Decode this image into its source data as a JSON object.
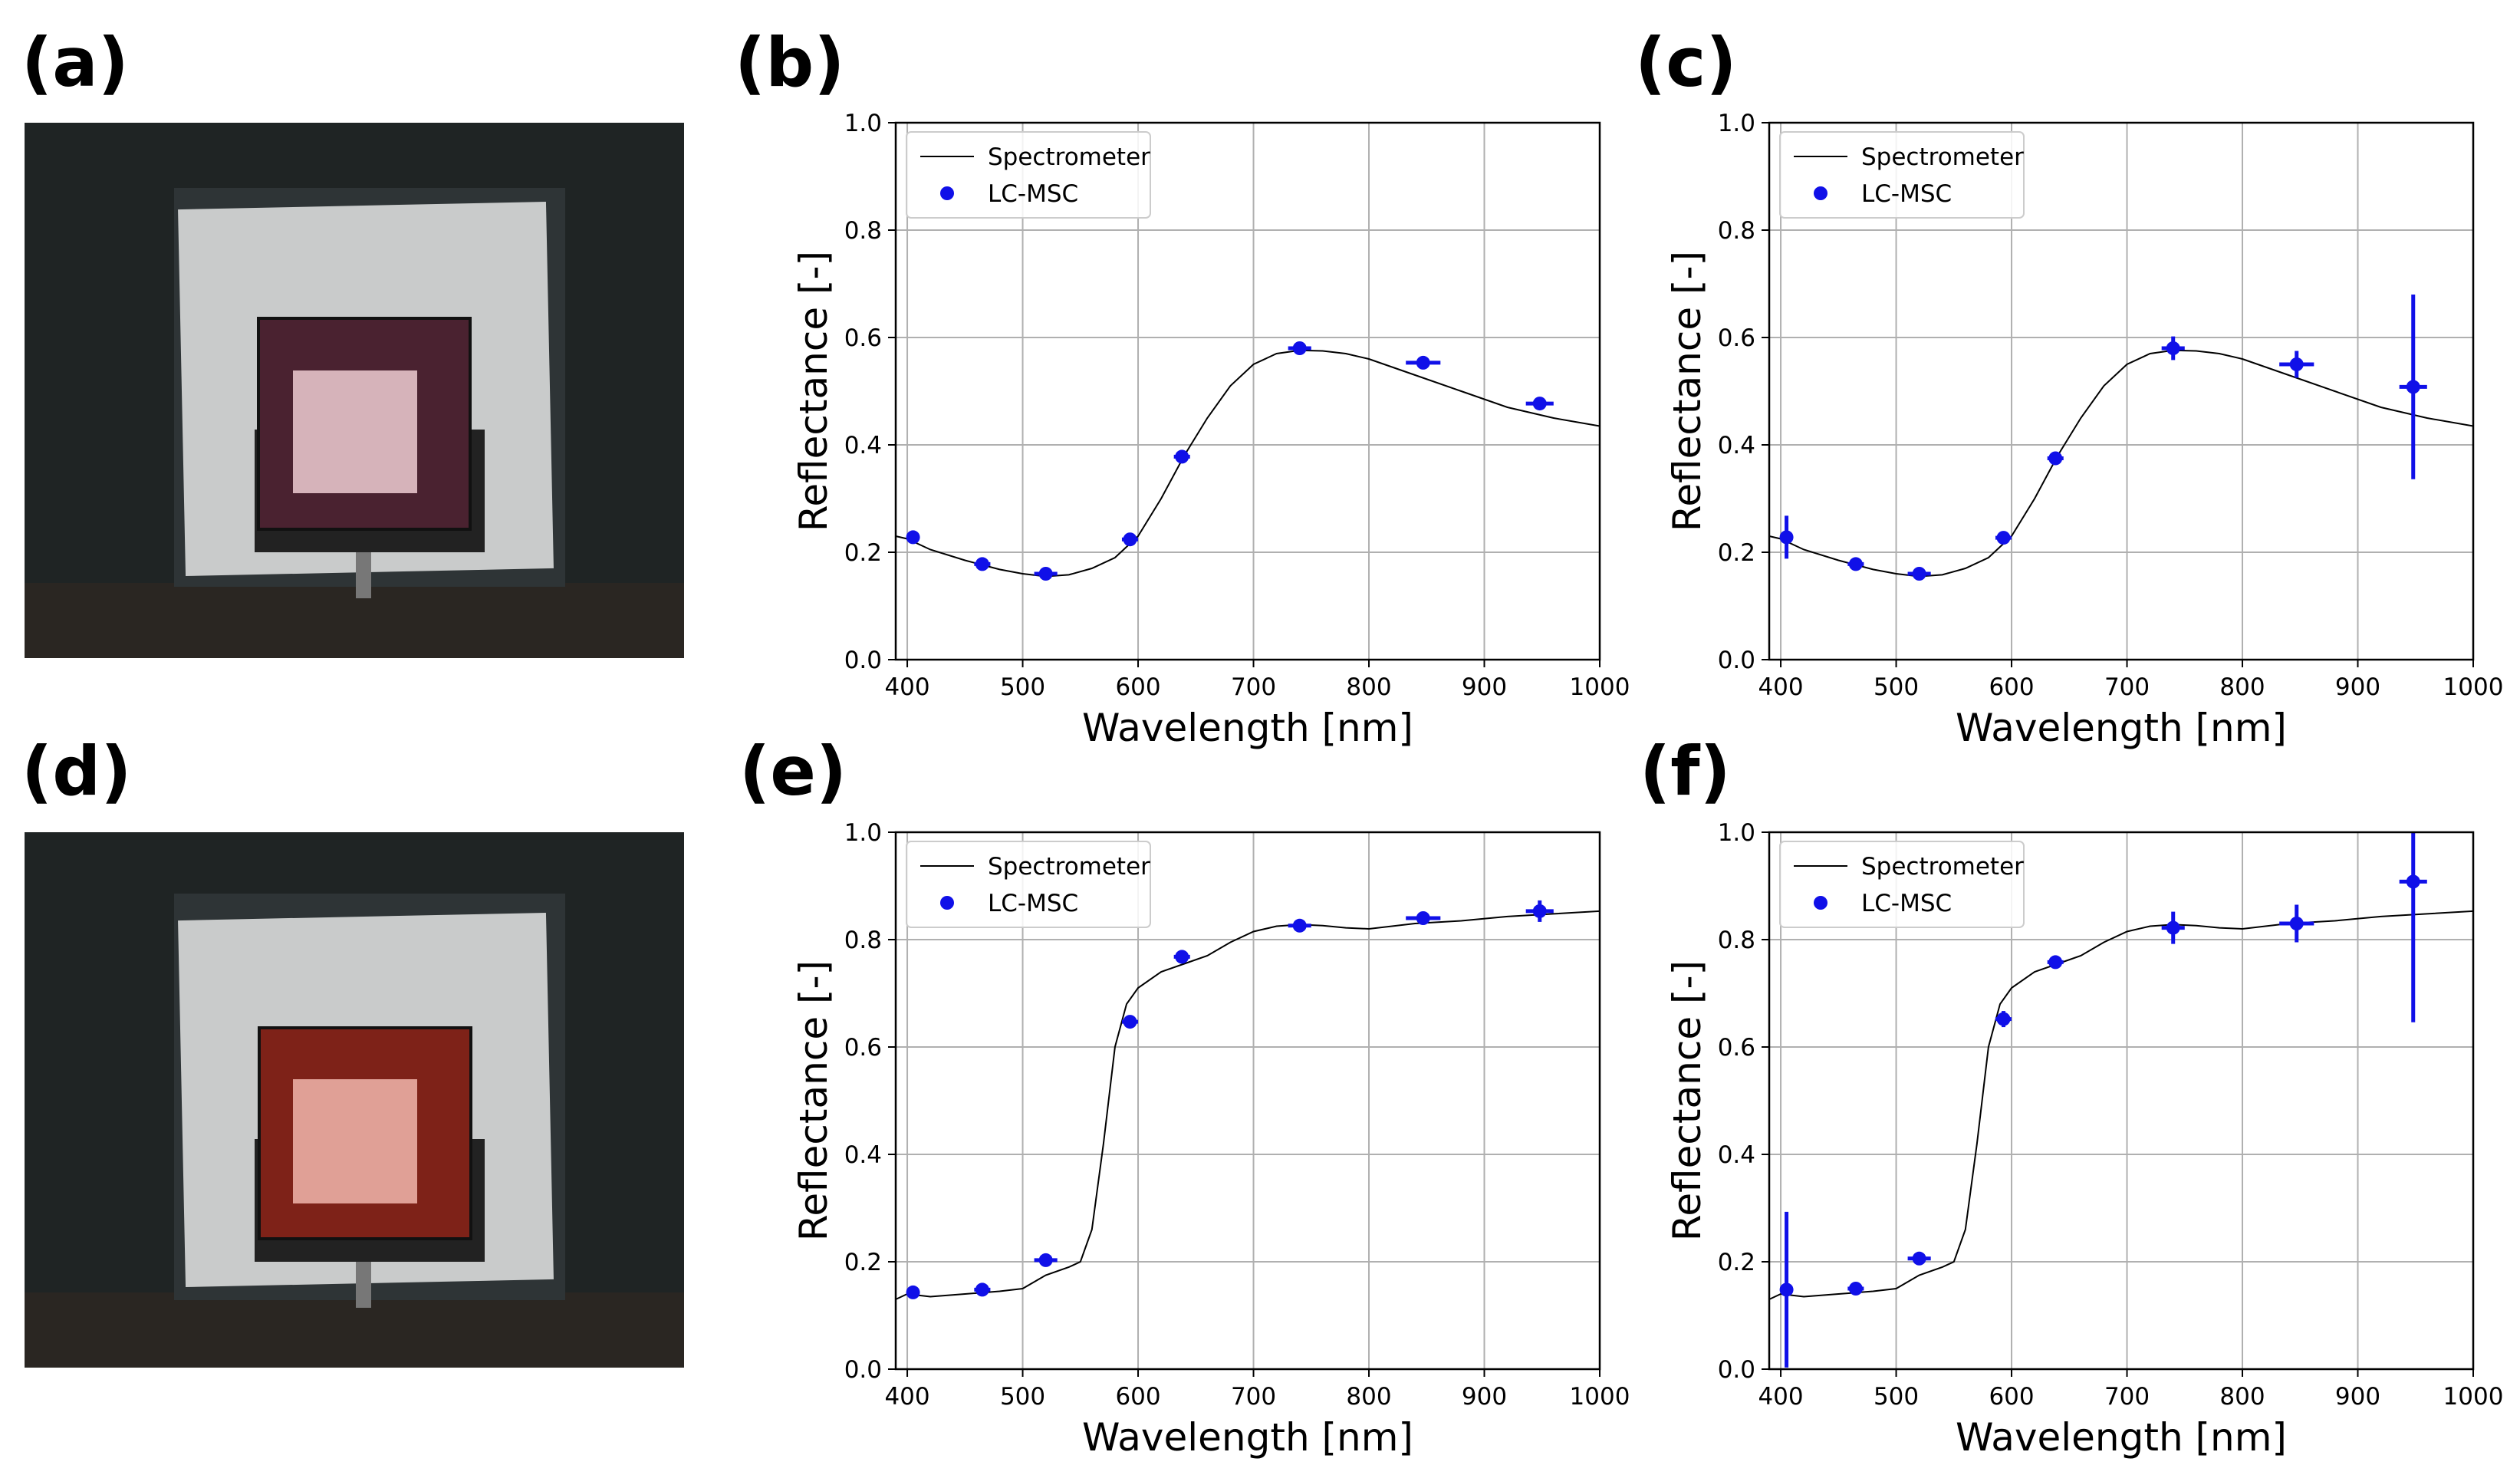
{
  "panel_labels": [
    "(a)",
    "(b)",
    "(c)",
    "(d)",
    "(e)",
    "(f)"
  ],
  "photos": [
    {
      "panel": "(a)",
      "target_color": "#4a2230",
      "center_color": "#d6b3ba"
    },
    {
      "panel": "(d)",
      "target_color": "#7e2218",
      "center_color": "#e0a096"
    }
  ],
  "colors": {
    "points": "#1010e8",
    "line": "#000000",
    "grid": "#b0b0b0"
  },
  "chart_data": [
    {
      "panel": "(b)",
      "type": "line",
      "xlabel": "Wavelength [nm]",
      "ylabel": "Reflectance [-]",
      "xlim": [
        390,
        1000
      ],
      "ylim": [
        0,
        1
      ],
      "xticks": [
        "400",
        "500",
        "600",
        "700",
        "800",
        "900",
        "1000"
      ],
      "yticks": [
        "0.0",
        "0.2",
        "0.4",
        "0.6",
        "0.8",
        "1.0"
      ],
      "legend": [
        "Spectrometer",
        "LC-MSC"
      ],
      "legend_position": "top-left",
      "spectrometer": {
        "x": [
          390,
          400,
          420,
          450,
          480,
          500,
          520,
          540,
          560,
          580,
          600,
          620,
          640,
          660,
          680,
          700,
          720,
          740,
          760,
          780,
          800,
          840,
          880,
          920,
          960,
          1000
        ],
        "y": [
          0.23,
          0.225,
          0.205,
          0.185,
          0.168,
          0.16,
          0.155,
          0.158,
          0.17,
          0.19,
          0.23,
          0.3,
          0.38,
          0.45,
          0.51,
          0.55,
          0.57,
          0.576,
          0.575,
          0.57,
          0.56,
          0.53,
          0.5,
          0.47,
          0.45,
          0.435
        ]
      },
      "lcmsc": {
        "x": [
          405,
          465,
          520,
          593,
          638,
          740,
          847,
          948
        ],
        "y": [
          0.228,
          0.178,
          0.16,
          0.224,
          0.378,
          0.58,
          0.553,
          0.477
        ],
        "yerr": [
          0.005,
          0.005,
          0.005,
          0.005,
          0.005,
          0.005,
          0.005,
          0.008
        ],
        "xerr": [
          5,
          7,
          10,
          7,
          7,
          10,
          15,
          12
        ]
      }
    },
    {
      "panel": "(c)",
      "type": "line",
      "xlabel": "Wavelength [nm]",
      "ylabel": "Reflectance [-]",
      "xlim": [
        390,
        1000
      ],
      "ylim": [
        0,
        1
      ],
      "xticks": [
        "400",
        "500",
        "600",
        "700",
        "800",
        "900",
        "1000"
      ],
      "yticks": [
        "0.0",
        "0.2",
        "0.4",
        "0.6",
        "0.8",
        "1.0"
      ],
      "legend": [
        "Spectrometer",
        "LC-MSC"
      ],
      "legend_position": "top-left",
      "spectrometer": {
        "x": [
          390,
          400,
          420,
          450,
          480,
          500,
          520,
          540,
          560,
          580,
          600,
          620,
          640,
          660,
          680,
          700,
          720,
          740,
          760,
          780,
          800,
          840,
          880,
          920,
          960,
          1000
        ],
        "y": [
          0.23,
          0.225,
          0.205,
          0.185,
          0.168,
          0.16,
          0.155,
          0.158,
          0.17,
          0.19,
          0.23,
          0.3,
          0.38,
          0.45,
          0.51,
          0.55,
          0.57,
          0.576,
          0.575,
          0.57,
          0.56,
          0.53,
          0.5,
          0.47,
          0.45,
          0.435
        ]
      },
      "lcmsc": {
        "x": [
          405,
          465,
          520,
          593,
          638,
          740,
          847,
          948
        ],
        "y": [
          0.228,
          0.178,
          0.16,
          0.227,
          0.375,
          0.58,
          0.55,
          0.508
        ],
        "yerr": [
          0.04,
          0.005,
          0.005,
          0.005,
          0.005,
          0.022,
          0.025,
          0.172
        ],
        "xerr": [
          5,
          7,
          10,
          7,
          7,
          10,
          15,
          12
        ]
      }
    },
    {
      "panel": "(e)",
      "type": "line",
      "xlabel": "Wavelength [nm]",
      "ylabel": "Reflectance [-]",
      "xlim": [
        390,
        1000
      ],
      "ylim": [
        0,
        1
      ],
      "xticks": [
        "400",
        "500",
        "600",
        "700",
        "800",
        "900",
        "1000"
      ],
      "yticks": [
        "0.0",
        "0.2",
        "0.4",
        "0.6",
        "0.8",
        "1.0"
      ],
      "legend": [
        "Spectrometer",
        "LC-MSC"
      ],
      "legend_position": "top-left",
      "spectrometer": {
        "x": [
          390,
          400,
          420,
          450,
          480,
          500,
          520,
          540,
          550,
          560,
          570,
          580,
          590,
          600,
          620,
          640,
          660,
          680,
          700,
          720,
          740,
          760,
          780,
          800,
          840,
          880,
          920,
          960,
          1000
        ],
        "y": [
          0.13,
          0.14,
          0.135,
          0.14,
          0.145,
          0.15,
          0.175,
          0.19,
          0.2,
          0.26,
          0.42,
          0.6,
          0.68,
          0.71,
          0.74,
          0.755,
          0.77,
          0.795,
          0.815,
          0.825,
          0.828,
          0.826,
          0.822,
          0.82,
          0.83,
          0.835,
          0.843,
          0.848,
          0.853
        ]
      },
      "lcmsc": {
        "x": [
          405,
          465,
          520,
          593,
          638,
          740,
          847,
          948
        ],
        "y": [
          0.143,
          0.148,
          0.203,
          0.647,
          0.768,
          0.826,
          0.84,
          0.853
        ],
        "yerr": [
          0.005,
          0.005,
          0.008,
          0.01,
          0.01,
          0.01,
          0.012,
          0.02
        ],
        "xerr": [
          5,
          7,
          10,
          7,
          7,
          10,
          15,
          12
        ]
      }
    },
    {
      "panel": "(f)",
      "type": "line",
      "xlabel": "Wavelength [nm]",
      "ylabel": "Reflectance [-]",
      "xlim": [
        390,
        1000
      ],
      "ylim": [
        0,
        1
      ],
      "xticks": [
        "400",
        "500",
        "600",
        "700",
        "800",
        "900",
        "1000"
      ],
      "yticks": [
        "0.0",
        "0.2",
        "0.4",
        "0.6",
        "0.8",
        "1.0"
      ],
      "legend": [
        "Spectrometer",
        "LC-MSC"
      ],
      "legend_position": "top-left",
      "spectrometer": {
        "x": [
          390,
          400,
          420,
          450,
          480,
          500,
          520,
          540,
          550,
          560,
          570,
          580,
          590,
          600,
          620,
          640,
          660,
          680,
          700,
          720,
          740,
          760,
          780,
          800,
          840,
          880,
          920,
          960,
          1000
        ],
        "y": [
          0.13,
          0.14,
          0.135,
          0.14,
          0.145,
          0.15,
          0.175,
          0.19,
          0.2,
          0.26,
          0.42,
          0.6,
          0.68,
          0.71,
          0.74,
          0.755,
          0.77,
          0.795,
          0.815,
          0.825,
          0.828,
          0.826,
          0.822,
          0.82,
          0.83,
          0.835,
          0.843,
          0.848,
          0.853
        ]
      },
      "lcmsc": {
        "x": [
          405,
          465,
          520,
          593,
          638,
          740,
          847,
          948
        ],
        "y": [
          0.148,
          0.15,
          0.206,
          0.652,
          0.758,
          0.822,
          0.83,
          0.908
        ],
        "yerr": [
          0.145,
          0.005,
          0.008,
          0.015,
          0.01,
          0.03,
          0.035,
          0.262
        ],
        "xerr": [
          5,
          7,
          10,
          7,
          7,
          10,
          15,
          12
        ]
      }
    }
  ]
}
